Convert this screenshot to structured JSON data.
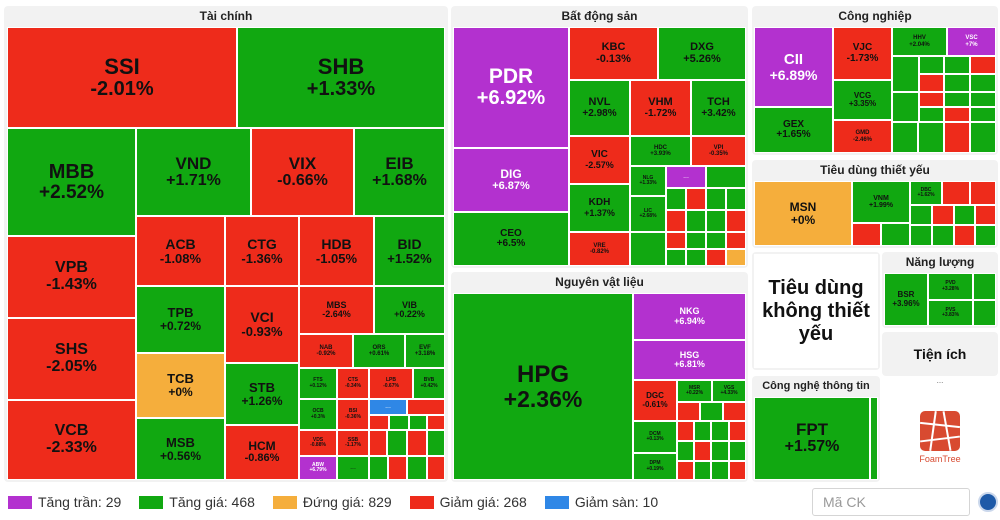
{
  "sectors": {
    "tai_chinh": "Tài chính",
    "bat_dong_san": "Bất động sản",
    "cong_nghiep": "Công nghiệp",
    "tieu_dung_thiet_yeu": "Tiêu dùng thiết yếu",
    "nguyen_vat_lieu": "Nguyên vật liệu",
    "tieu_dung_khong_thiet_yeu": "Tiêu dùng không thiết yếu",
    "nang_luong": "Năng lượng",
    "tien_ich": "Tiện ích",
    "cong_nghe_thong_tin": "Công nghệ thông tin"
  },
  "tiles": {
    "SSI": {
      "sym": "SSI",
      "chg": "-2.01%"
    },
    "SHB": {
      "sym": "SHB",
      "chg": "+1.33%"
    },
    "MBB": {
      "sym": "MBB",
      "chg": "+2.52%"
    },
    "VND": {
      "sym": "VND",
      "chg": "+1.71%"
    },
    "VIX": {
      "sym": "VIX",
      "chg": "-0.66%"
    },
    "EIB": {
      "sym": "EIB",
      "chg": "+1.68%"
    },
    "VPB": {
      "sym": "VPB",
      "chg": "-1.43%"
    },
    "ACB": {
      "sym": "ACB",
      "chg": "-1.08%"
    },
    "CTG": {
      "sym": "CTG",
      "chg": "-1.36%"
    },
    "HDB": {
      "sym": "HDB",
      "chg": "-1.05%"
    },
    "BID": {
      "sym": "BID",
      "chg": "+1.52%"
    },
    "TPB": {
      "sym": "TPB",
      "chg": "+0.72%"
    },
    "VCI": {
      "sym": "VCI",
      "chg": "-0.93%"
    },
    "MBS": {
      "sym": "MBS",
      "chg": "-2.64%"
    },
    "VIB": {
      "sym": "VIB",
      "chg": "+0.22%"
    },
    "SHS": {
      "sym": "SHS",
      "chg": "-2.05%"
    },
    "TCB": {
      "sym": "TCB",
      "chg": "+0%"
    },
    "NAB": {
      "sym": "NAB",
      "chg": "-0.92%"
    },
    "ORS": {
      "sym": "ORS",
      "chg": "+0.61%"
    },
    "EVF": {
      "sym": "EVF",
      "chg": "+3.18%"
    },
    "STB": {
      "sym": "STB",
      "chg": "+1.26%"
    },
    "FTS": {
      "sym": "FTS",
      "chg": "+0.12%"
    },
    "CTS": {
      "sym": "CTS",
      "chg": "-0.34%"
    },
    "LPB": {
      "sym": "LPB",
      "chg": "-0.67%"
    },
    "BVB": {
      "sym": "BVB",
      "chg": "+0.42%"
    },
    "OCB": {
      "sym": "OCB",
      "chg": "+0.3%"
    },
    "BSI": {
      "sym": "BSI",
      "chg": "-0.36%"
    },
    "VCB": {
      "sym": "VCB",
      "chg": "-2.33%"
    },
    "MSB": {
      "sym": "MSB",
      "chg": "+0.56%"
    },
    "HCM": {
      "sym": "HCM",
      "chg": "-0.86%"
    },
    "VDS": {
      "sym": "VDS",
      "chg": "-0.88%"
    },
    "SSB": {
      "sym": "SSB",
      "chg": "-1.17%"
    },
    "ABW": {
      "sym": "ABW",
      "chg": "+6.79%"
    },
    "PDR": {
      "sym": "PDR",
      "chg": "+6.92%"
    },
    "KBC": {
      "sym": "KBC",
      "chg": "-0.13%"
    },
    "DXG": {
      "sym": "DXG",
      "chg": "+5.26%"
    },
    "NVL": {
      "sym": "NVL",
      "chg": "+2.98%"
    },
    "VHM": {
      "sym": "VHM",
      "chg": "-1.72%"
    },
    "TCH": {
      "sym": "TCH",
      "chg": "+3.42%"
    },
    "DIG": {
      "sym": "DIG",
      "chg": "+6.87%"
    },
    "VIC": {
      "sym": "VIC",
      "chg": "-2.57%"
    },
    "HDC": {
      "sym": "HDC",
      "chg": "+3.93%"
    },
    "VPI": {
      "sym": "VPI",
      "chg": "-0.35%"
    },
    "KDH": {
      "sym": "KDH",
      "chg": "+1.37%"
    },
    "NLG": {
      "sym": "NLG",
      "chg": "+1.33%"
    },
    "CEO": {
      "sym": "CEO",
      "chg": "+6.5%"
    },
    "LIC": {
      "sym": "LIC",
      "chg": "+2.68%"
    },
    "VRE": {
      "sym": "VRE",
      "chg": "-0.82%"
    },
    "CII": {
      "sym": "CII",
      "chg": "+6.89%"
    },
    "VJC": {
      "sym": "VJC",
      "chg": "-1.73%"
    },
    "HHV": {
      "sym": "HHV",
      "chg": "+2.04%"
    },
    "VSC": {
      "sym": "VSC",
      "chg": "+7%"
    },
    "VCG": {
      "sym": "VCG",
      "chg": "+3.35%"
    },
    "GEX": {
      "sym": "GEX",
      "chg": "+1.65%"
    },
    "GMD": {
      "sym": "GMD",
      "chg": "-2.46%"
    },
    "MSN": {
      "sym": "MSN",
      "chg": "+0%"
    },
    "VNM": {
      "sym": "VNM",
      "chg": "+1.99%"
    },
    "DBC": {
      "sym": "DBC",
      "chg": "+1.62%"
    },
    "HPG": {
      "sym": "HPG",
      "chg": "+2.36%"
    },
    "NKG": {
      "sym": "NKG",
      "chg": "+6.94%"
    },
    "HSG": {
      "sym": "HSG",
      "chg": "+6.81%"
    },
    "DGC": {
      "sym": "DGC",
      "chg": "-0.61%"
    },
    "MSR": {
      "sym": "MSR",
      "chg": "+0.22%"
    },
    "VGS": {
      "sym": "VGS",
      "chg": "+4.33%"
    },
    "DCM": {
      "sym": "DCM",
      "chg": "+0.13%"
    },
    "DPM": {
      "sym": "DPM",
      "chg": "+0.19%"
    },
    "BSR": {
      "sym": "BSR",
      "chg": "+3.96%"
    },
    "PVD": {
      "sym": "PVD",
      "chg": "+3.28%"
    },
    "PVS": {
      "sym": "PVS",
      "chg": "+3.83%"
    },
    "FPT": {
      "sym": "FPT",
      "chg": "+1.57%"
    }
  },
  "more": "...",
  "foamtree": "FoamTree",
  "legend": [
    {
      "label": "Tăng trần: 29",
      "color": "#b331cf"
    },
    {
      "label": "Tăng giá: 468",
      "color": "#11a811"
    },
    {
      "label": "Đứng giá: 829",
      "color": "#f5ae3c"
    },
    {
      "label": "Giảm giá: 268",
      "color": "#ee2b1b"
    },
    {
      "label": "Giảm sàn: 10",
      "color": "#2f87e6"
    }
  ],
  "search": {
    "placeholder": "Mã CK"
  }
}
